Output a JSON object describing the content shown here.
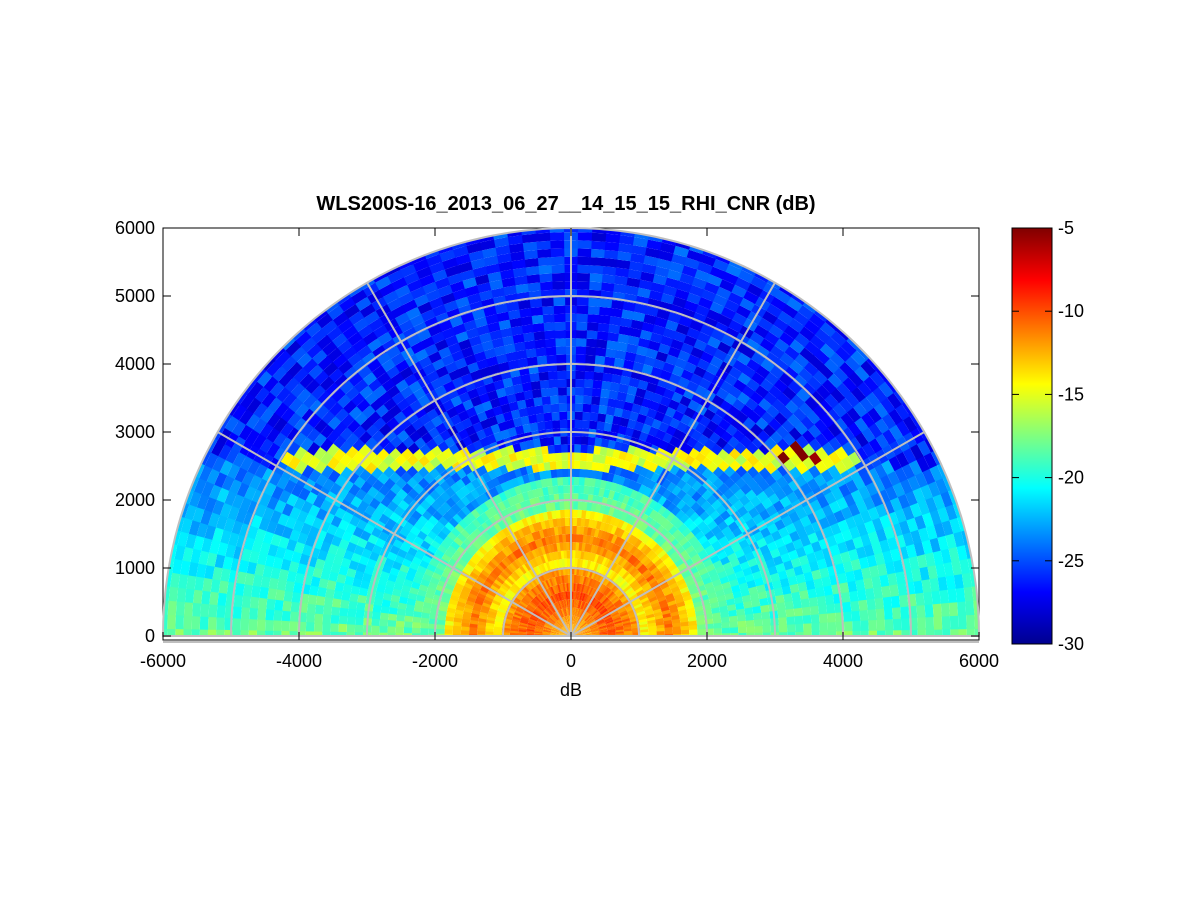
{
  "chart_data": {
    "type": "heatmap",
    "subtype": "polar-sector-rhi",
    "title": "WLS200S-16_2013_06_27__14_15_15_RHI_CNR (dB)",
    "xlabel": "dB",
    "ylabel": "",
    "xlim": [
      -6000,
      6000
    ],
    "ylim": [
      0,
      6000
    ],
    "xticks": [
      "-6000",
      "-4000",
      "-2000",
      "0",
      "2000",
      "4000",
      "6000"
    ],
    "yticks": [
      "0",
      "1000",
      "2000",
      "3000",
      "4000",
      "5000",
      "6000"
    ],
    "max_range": 6000,
    "elevation_range_deg": [
      -5,
      185
    ],
    "grid_ring_ranges": [
      1000,
      2000,
      3000,
      4000,
      5000,
      6000
    ],
    "grid_spoke_angles_deg": [
      0,
      30,
      60,
      90,
      120,
      150,
      180
    ],
    "colorbar": {
      "colormap": "jet",
      "clim": [
        -30,
        -5
      ],
      "ticks": [
        "-5",
        "-10",
        "-15",
        "-20",
        "-25",
        "-30"
      ]
    },
    "features": [
      {
        "label": "near-range high CNR",
        "range": [
          0,
          1000
        ],
        "value_db": -10
      },
      {
        "label": "secondary high CNR band",
        "range": [
          1000,
          1900
        ],
        "value_db": -11
      },
      {
        "label": "boundary layer top",
        "height": 2600,
        "value_db": -15
      },
      {
        "label": "aerosol layer hot spots",
        "x": [
          2700,
          4200
        ],
        "height": 2700,
        "value_db": -7
      },
      {
        "label": "free troposphere",
        "range": [
          3000,
          6000
        ],
        "value_db": -26
      }
    ]
  }
}
